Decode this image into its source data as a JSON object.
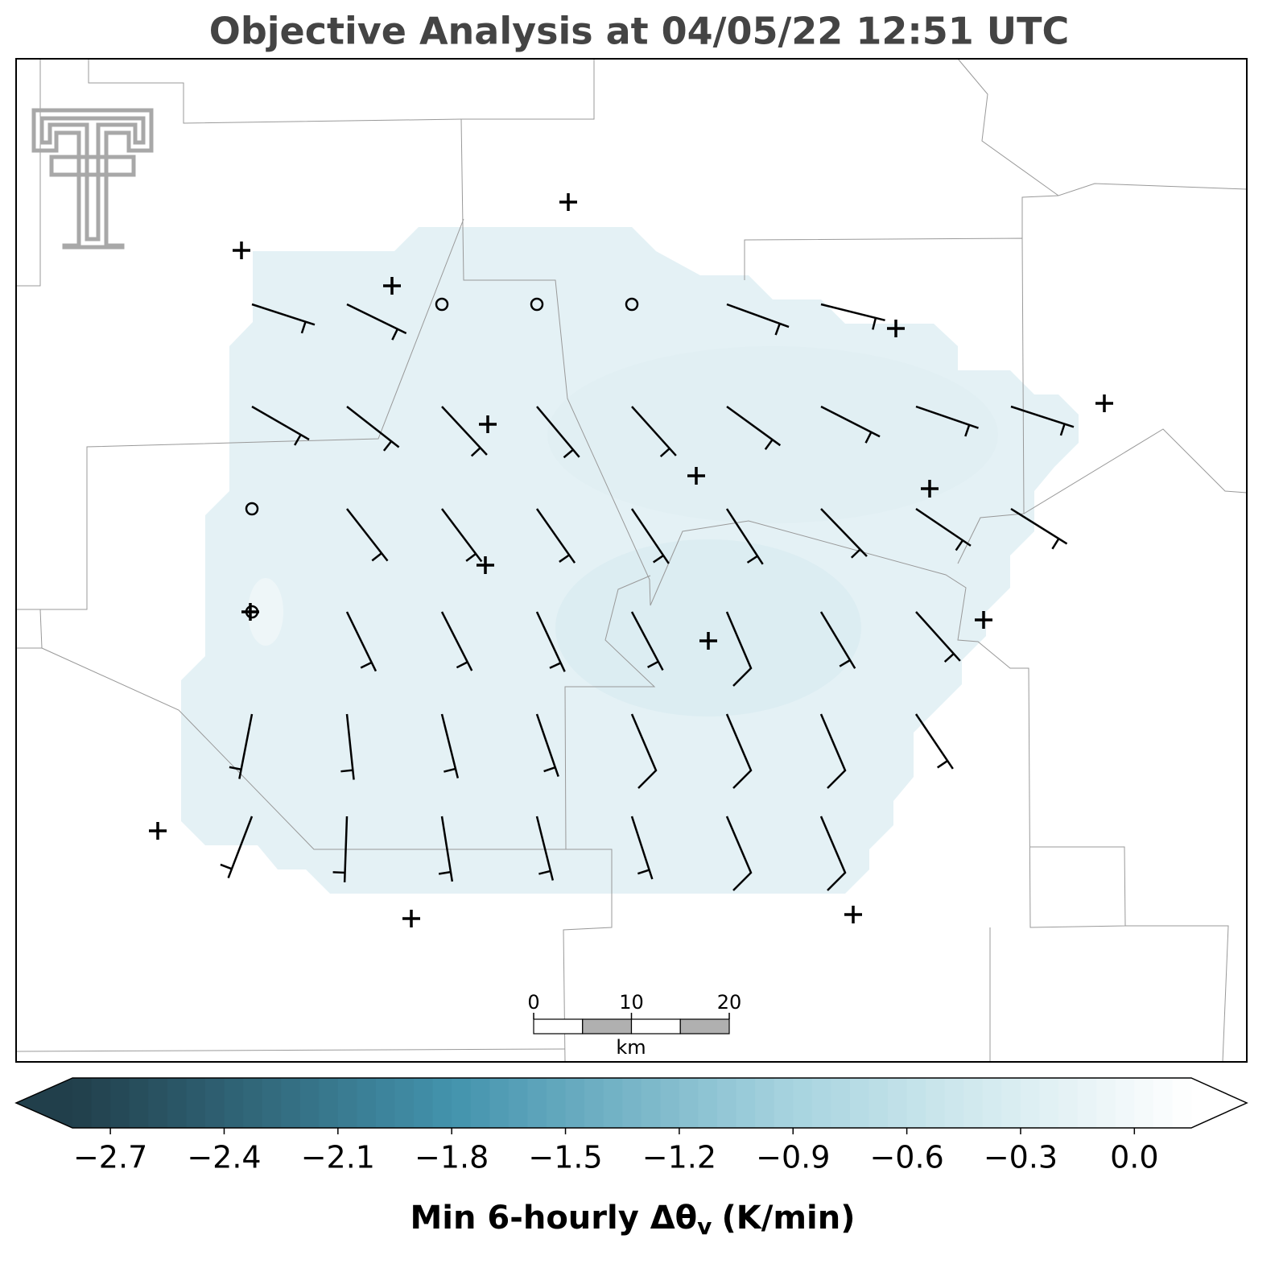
{
  "title": "Objective Analysis at 04/05/22 12:51 UTC",
  "scale_bar": {
    "ticks": [
      0,
      10,
      20
    ],
    "unit": "km"
  },
  "colorbar": {
    "label": {
      "main": "Min 6-hourly Δθ",
      "sub": "v",
      "unit": "(K/min)"
    },
    "clim": [
      -2.8,
      0.15
    ],
    "ticks": [
      {
        "value": -2.7,
        "label": "−2.7"
      },
      {
        "value": -2.4,
        "label": "−2.4"
      },
      {
        "value": -2.1,
        "label": "−2.1"
      },
      {
        "value": -1.8,
        "label": "−1.8"
      },
      {
        "value": -1.5,
        "label": "−1.5"
      },
      {
        "value": -1.2,
        "label": "−1.2"
      },
      {
        "value": -0.9,
        "label": "−0.9"
      },
      {
        "value": -0.6,
        "label": "−0.6"
      },
      {
        "value": -0.3,
        "label": "−0.3"
      },
      {
        "value": 0.0,
        "label": "0.0"
      }
    ]
  }
}
